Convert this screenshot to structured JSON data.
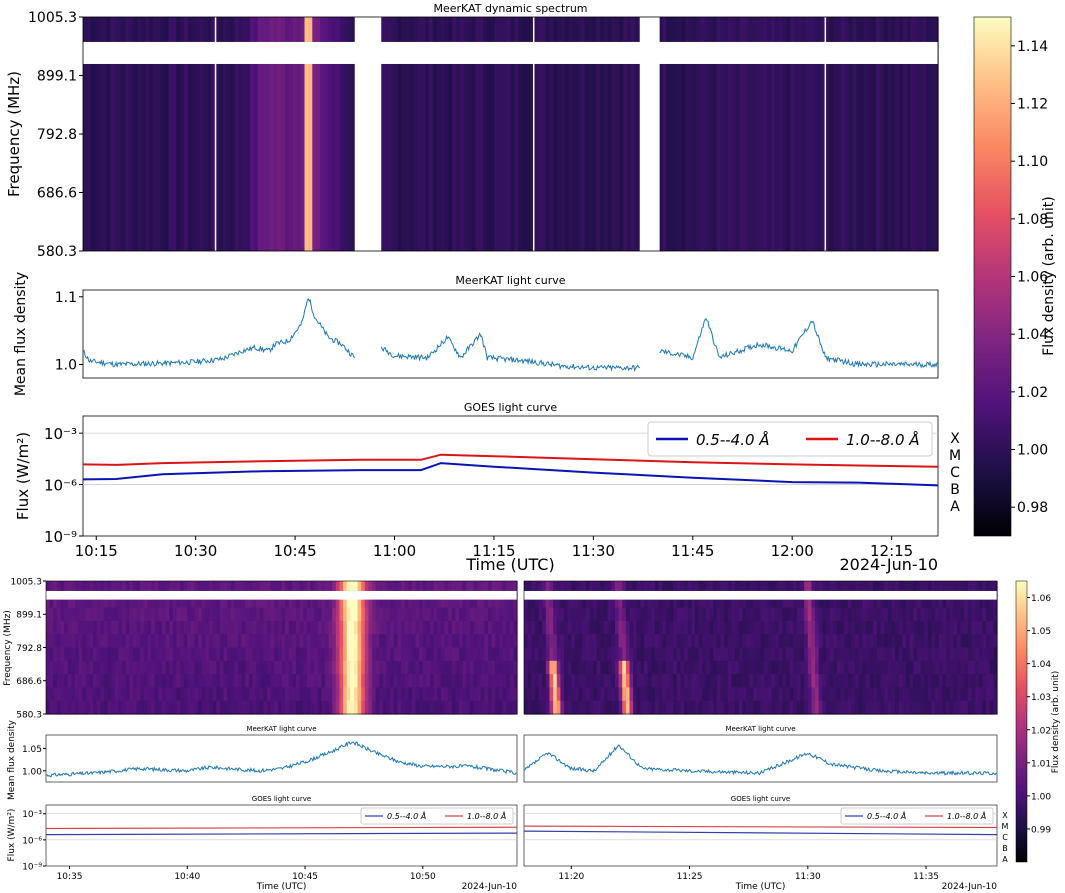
{
  "chart_data": [
    {
      "type": "heatmap",
      "title": "MeerKAT dynamic spectrum",
      "ylabel": "Frequency (MHz)",
      "yticks": [
        "1005.3",
        "899.1",
        "792.8",
        "686.6",
        "580.3"
      ],
      "ylim": [
        580.3,
        1005.3
      ],
      "colorbar_label": "Flux density (arb. unit)",
      "colorbar_ticks": [
        "1.14",
        "1.12",
        "1.10",
        "1.08",
        "1.06",
        "1.04",
        "1.02",
        "1.00",
        "0.98"
      ],
      "colorbar_range": [
        0.97,
        1.15
      ],
      "colormap": "magma",
      "band_gap_mhz": [
        920,
        960
      ],
      "data_gaps_utc": [
        [
          "10:54",
          "10:58"
        ],
        [
          "11:37",
          "11:40"
        ]
      ],
      "features": [
        {
          "time_utc": "10:47",
          "peak_flux": 1.14,
          "description": "bright broadband burst"
        },
        {
          "time_utc": "10:41",
          "peak_flux": 1.03
        }
      ]
    },
    {
      "type": "line",
      "title": "MeerKAT light curve",
      "ylabel": "Mean flux density",
      "yticks": [
        "1.0",
        "1.1"
      ],
      "ylim": [
        0.98,
        1.11
      ],
      "x_range_utc": [
        "10:13",
        "12:22"
      ],
      "series": [
        {
          "color": "#1f77b4",
          "points": [
            [
              "10:13",
              1.02
            ],
            [
              "10:14",
              1.005
            ],
            [
              "10:18",
              1.0
            ],
            [
              "10:22",
              1.001
            ],
            [
              "10:26",
              1.002
            ],
            [
              "10:30",
              1.004
            ],
            [
              "10:34",
              1.008
            ],
            [
              "10:37",
              1.02
            ],
            [
              "10:39",
              1.025
            ],
            [
              "10:41",
              1.02
            ],
            [
              "10:42",
              1.03
            ],
            [
              "10:44",
              1.035
            ],
            [
              "10:46",
              1.06
            ],
            [
              "10:47",
              1.1
            ],
            [
              "10:48",
              1.07
            ],
            [
              "10:50",
              1.04
            ],
            [
              "10:52",
              1.03
            ],
            [
              "10:54",
              1.01
            ],
            null,
            [
              "10:58",
              1.025
            ],
            [
              "11:00",
              1.013
            ],
            [
              "11:05",
              1.01
            ],
            [
              "11:08",
              1.04
            ],
            [
              "11:10",
              1.01
            ],
            [
              "11:13",
              1.045
            ],
            [
              "11:14",
              1.01
            ],
            [
              "11:20",
              1.005
            ],
            [
              "11:25",
              0.998
            ],
            [
              "11:30",
              0.995
            ],
            [
              "11:37",
              0.995
            ],
            null,
            [
              "11:40",
              1.02
            ],
            [
              "11:45",
              1.01
            ],
            [
              "11:47",
              1.07
            ],
            [
              "11:49",
              1.01
            ],
            [
              "11:55",
              1.03
            ],
            [
              "12:00",
              1.02
            ],
            [
              "12:03",
              1.065
            ],
            [
              "12:05",
              1.01
            ],
            [
              "12:10",
              1.0
            ],
            [
              "12:22",
              1.0
            ]
          ]
        }
      ]
    },
    {
      "type": "line",
      "title": "GOES light curve",
      "xlabel": "Time (UTC)",
      "ylabel": "Flux (W/m²)",
      "yscale": "log",
      "ylim": [
        1e-09,
        0.01
      ],
      "yticks": [
        "10⁻³",
        "10⁻⁶",
        "10⁻⁹"
      ],
      "xticks": [
        "10:15",
        "10:30",
        "10:45",
        "11:00",
        "11:15",
        "11:30",
        "11:45",
        "12:00",
        "12:15"
      ],
      "date_label": "2024-Jun-10",
      "class_labels": [
        "X",
        "M",
        "C",
        "B",
        "A"
      ],
      "legend": "top-right",
      "grid_y": true,
      "series": [
        {
          "name": "0.5--4.0 Å",
          "color": "#0a14b4",
          "points": [
            [
              "10:13",
              2e-06
            ],
            [
              "10:18",
              2.1e-06
            ],
            [
              "10:25",
              4e-06
            ],
            [
              "10:40",
              6e-06
            ],
            [
              "10:55",
              7e-06
            ],
            [
              "11:04",
              7e-06
            ],
            [
              "11:07",
              1.8e-05
            ],
            [
              "11:15",
              1.1e-05
            ],
            [
              "11:30",
              5e-06
            ],
            [
              "11:45",
              2.5e-06
            ],
            [
              "12:00",
              1.4e-06
            ],
            [
              "12:10",
              1.3e-06
            ],
            [
              "12:22",
              9e-07
            ]
          ]
        },
        {
          "name": "1.0--8.0 Å",
          "color": "#dc1414",
          "points": [
            [
              "10:13",
              1.5e-05
            ],
            [
              "10:18",
              1.4e-05
            ],
            [
              "10:25",
              1.8e-05
            ],
            [
              "10:40",
              2.3e-05
            ],
            [
              "10:55",
              2.8e-05
            ],
            [
              "11:04",
              2.8e-05
            ],
            [
              "11:07",
              5.5e-05
            ],
            [
              "11:15",
              4.5e-05
            ],
            [
              "11:30",
              3e-05
            ],
            [
              "11:45",
              2e-05
            ],
            [
              "12:00",
              1.5e-05
            ],
            [
              "12:10",
              1.3e-05
            ],
            [
              "12:22",
              1.1e-05
            ]
          ]
        }
      ]
    },
    {
      "type": "heatmap",
      "panel": "zoom-left",
      "ylabel": "Frequency (MHz)",
      "yticks": [
        "1005.3",
        "899.1",
        "792.8",
        "686.6",
        "580.3"
      ],
      "feature": {
        "time_utc": "10:47",
        "description": "bright broadband burst"
      }
    },
    {
      "type": "heatmap",
      "panel": "zoom-right",
      "features": [
        {
          "time_utc": "11:19",
          "description": "drifting burst"
        },
        {
          "time_utc": "11:22",
          "description": "drifting burst"
        },
        {
          "time_utc": "11:30",
          "description": "weak drifting burst"
        }
      ],
      "colorbar_label": "Flux density (arb. unit)",
      "colorbar_ticks": [
        "1.06",
        "1.05",
        "1.04",
        "1.03",
        "1.02",
        "1.01",
        "1.00",
        "0.99"
      ],
      "colorbar_range": [
        0.98,
        1.065
      ]
    },
    {
      "type": "line",
      "panel": "zoom-left",
      "title": "MeerKAT light curve",
      "ylabel": "Mean flux density",
      "yticks": [
        "1.00",
        "1.05"
      ],
      "ylim": [
        0.98,
        1.08
      ],
      "x_range_utc": [
        "10:34",
        "10:54"
      ],
      "series": [
        {
          "color": "#1f77b4",
          "points": [
            [
              "10:34",
              0.99
            ],
            [
              "10:36",
              0.995
            ],
            [
              "10:38",
              1.005
            ],
            [
              "10:40",
              1.0
            ],
            [
              "10:41",
              1.008
            ],
            [
              "10:43",
              1.0
            ],
            [
              "10:44",
              1.005
            ],
            [
              "10:45",
              1.02
            ],
            [
              "10:46",
              1.04
            ],
            [
              "10:47",
              1.065
            ],
            [
              "10:48",
              1.04
            ],
            [
              "10:49",
              1.02
            ],
            [
              "10:50",
              1.01
            ],
            [
              "10:52",
              1.01
            ],
            [
              "10:54",
              0.995
            ]
          ]
        }
      ]
    },
    {
      "type": "line",
      "panel": "zoom-right",
      "title": "MeerKAT light curve",
      "x_range_utc": [
        "11:18",
        "11:38"
      ],
      "series": [
        {
          "color": "#1f77b4",
          "points": [
            [
              "11:18",
              1.0
            ],
            [
              "11:19",
              1.04
            ],
            [
              "11:20",
              1.005
            ],
            [
              "11:21",
              1.0
            ],
            [
              "11:22",
              1.058
            ],
            [
              "11:23",
              1.005
            ],
            [
              "11:25",
              1.0
            ],
            [
              "11:28",
              0.995
            ],
            [
              "11:30",
              1.04
            ],
            [
              "11:31",
              1.015
            ],
            [
              "11:33",
              1.0
            ],
            [
              "11:35",
              0.995
            ],
            [
              "11:38",
              0.995
            ]
          ]
        }
      ]
    },
    {
      "type": "line",
      "panel": "zoom-left",
      "title": "GOES light curve",
      "xlabel": "Time (UTC)",
      "ylabel": "Flux (W/m²)",
      "yscale": "log",
      "yticks": [
        "10⁻³",
        "10⁻⁶",
        "10⁻⁹"
      ],
      "xticks": [
        "10:35",
        "10:40",
        "10:45",
        "10:50"
      ],
      "date_label": "2024-Jun-10",
      "legend": "top-right",
      "series": [
        {
          "name": "0.5--4.0 Å",
          "color": "#3340a8",
          "points": [
            [
              "10:34",
              4e-06
            ],
            [
              "10:54",
              6e-06
            ]
          ]
        },
        {
          "name": "1.0--8.0 Å",
          "color": "#d4464a",
          "points": [
            [
              "10:34",
              2e-05
            ],
            [
              "10:54",
              2.8e-05
            ]
          ]
        }
      ]
    },
    {
      "type": "line",
      "panel": "zoom-right",
      "title": "GOES light curve",
      "xlabel": "Time (UTC)",
      "yscale": "log",
      "xticks": [
        "11:20",
        "11:25",
        "11:30",
        "11:35"
      ],
      "date_label": "2024-Jun-10",
      "class_labels": [
        "X",
        "M",
        "C",
        "B",
        "A"
      ],
      "legend": "top-right",
      "series": [
        {
          "name": "0.5--4.0 Å",
          "color": "#3340a8",
          "points": [
            [
              "11:18",
              1e-05
            ],
            [
              "11:38",
              4e-06
            ]
          ]
        },
        {
          "name": "1.0--8.0 Å",
          "color": "#d4464a",
          "points": [
            [
              "11:18",
              3.8e-05
            ],
            [
              "11:38",
              2.6e-05
            ]
          ]
        }
      ]
    }
  ]
}
